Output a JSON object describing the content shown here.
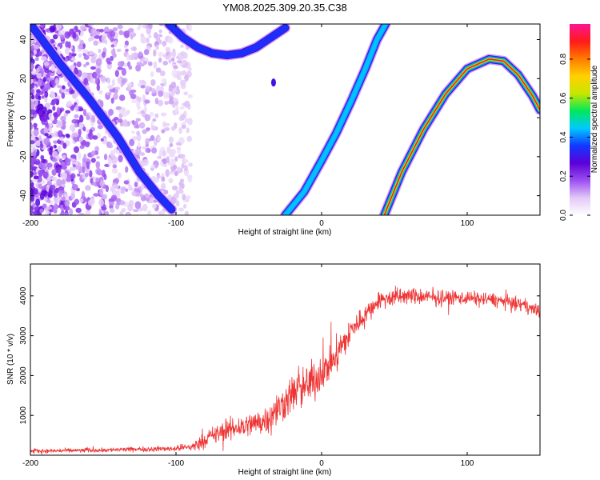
{
  "figure_title": "YM08.2025.309.20.35.C38",
  "colors": {
    "snr_line": "#ee3333",
    "axis": "#000000",
    "background": "#ffffff",
    "colormap": [
      "#ffffff",
      "#e2c8f7",
      "#9c4ef0",
      "#5a00d8",
      "#1238ff",
      "#00c9ff",
      "#00e85a",
      "#c8e600",
      "#ffd000",
      "#ff7a00",
      "#ff1a1a",
      "#ff1493"
    ]
  },
  "chart_data": [
    {
      "type": "heatmap",
      "title": "",
      "xlabel": "Height of straight line (km)",
      "ylabel": "Frequency (Hz)",
      "xlim": [
        -200,
        150
      ],
      "ylim": [
        -50,
        48
      ],
      "xticks": [
        -200,
        -100,
        0,
        100
      ],
      "yticks": [
        -40,
        -20,
        0,
        20,
        40
      ],
      "colorbar": {
        "label": "Normalized spectral amplitude",
        "range": [
          0,
          0.98
        ],
        "ticks": [
          "0.0",
          "0.2",
          "0.4",
          "0.6",
          "0.8"
        ]
      },
      "noise_region": {
        "x_range": [
          -200,
          -90
        ],
        "y_range": [
          -50,
          48
        ],
        "amplitude": [
          0.05,
          0.3
        ]
      },
      "traces": [
        {
          "name": "upper-left arc",
          "amplitude": 0.35,
          "points": [
            [
              -105,
              48
            ],
            [
              -95,
              41
            ],
            [
              -85,
              36
            ],
            [
              -75,
              33
            ],
            [
              -65,
              32
            ],
            [
              -55,
              33
            ],
            [
              -45,
              36
            ],
            [
              -35,
              41
            ],
            [
              -25,
              46
            ]
          ]
        },
        {
          "name": "lower-left arc",
          "amplitude": 0.35,
          "points": [
            [
              -200,
              48
            ],
            [
              -180,
              28
            ],
            [
              -160,
              10
            ],
            [
              -140,
              -10
            ],
            [
              -125,
              -28
            ],
            [
              -112,
              -40
            ],
            [
              -103,
              -47
            ]
          ]
        },
        {
          "name": "middle line",
          "amplitude": 0.45,
          "points": [
            [
              -25,
              -50
            ],
            [
              -12,
              -38
            ],
            [
              0,
              -22
            ],
            [
              10,
              -8
            ],
            [
              20,
              8
            ],
            [
              30,
              25
            ],
            [
              38,
              40
            ],
            [
              44,
              48
            ]
          ]
        },
        {
          "name": "right arc",
          "amplitude": 0.92,
          "points": [
            [
              43,
              -50
            ],
            [
              55,
              -28
            ],
            [
              70,
              -6
            ],
            [
              85,
              12
            ],
            [
              100,
              25
            ],
            [
              115,
              30
            ],
            [
              125,
              29
            ],
            [
              135,
              22
            ],
            [
              145,
              11
            ],
            [
              150,
              4
            ]
          ]
        }
      ],
      "hotspot": {
        "x": -33,
        "y": 18,
        "amplitude": 0.3
      }
    },
    {
      "type": "line",
      "title": "",
      "xlabel": "Height of straight line (km)",
      "ylabel": "SNR (10 * v/v)",
      "xlim": [
        -200,
        150
      ],
      "ylim": [
        0,
        4800
      ],
      "xticks": [
        -200,
        -100,
        0,
        100
      ],
      "yticks": [
        1000,
        2000,
        3000,
        4000
      ],
      "series": [
        {
          "name": "SNR",
          "envelope": {
            "x": [
              -200,
              -150,
              -100,
              -88,
              -80,
              -70,
              -60,
              -50,
              -40,
              -30,
              -20,
              -10,
              0,
              10,
              20,
              30,
              40,
              60,
              80,
              100,
              120,
              140,
              150
            ],
            "mean": [
              100,
              130,
              170,
              220,
              400,
              560,
              680,
              760,
              860,
              1150,
              1550,
              1750,
              2050,
              2500,
              3100,
              3550,
              3900,
              4000,
              3950,
              3950,
              3900,
              3750,
              3600
            ],
            "spread": [
              80,
              80,
              100,
              180,
              300,
              380,
              430,
              450,
              520,
              600,
              720,
              780,
              700,
              600,
              500,
              350,
              300,
              300,
              280,
              260,
              250,
              250,
              230
            ]
          }
        }
      ]
    }
  ]
}
